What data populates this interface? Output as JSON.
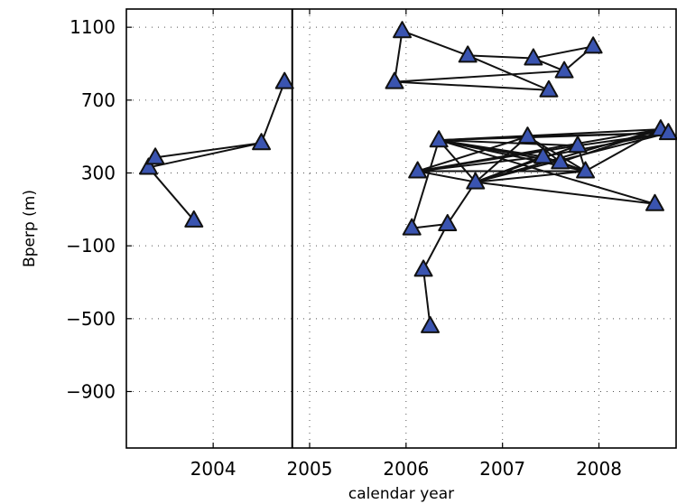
{
  "chart_data": {
    "type": "scatter",
    "title": "",
    "xlabel": "calendar year",
    "ylabel": "Bperp (m)",
    "xlim": [
      2003.1,
      2008.8
    ],
    "ylim": [
      -1210,
      1200
    ],
    "x_ticks": [
      2004,
      2005,
      2006,
      2007,
      2008
    ],
    "y_ticks": [
      1100,
      700,
      300,
      -100,
      -500,
      -900
    ],
    "grid": true,
    "reference_line_x": 2004.82,
    "points": [
      {
        "x": 2003.33,
        "y": 330
      },
      {
        "x": 2003.4,
        "y": 385
      },
      {
        "x": 2003.8,
        "y": 40
      },
      {
        "x": 2004.5,
        "y": 465
      },
      {
        "x": 2004.74,
        "y": 800
      },
      {
        "x": 2005.88,
        "y": 800
      },
      {
        "x": 2005.96,
        "y": 1080
      },
      {
        "x": 2006.64,
        "y": 945
      },
      {
        "x": 2007.32,
        "y": 930
      },
      {
        "x": 2007.48,
        "y": 755
      },
      {
        "x": 2007.64,
        "y": 860
      },
      {
        "x": 2007.94,
        "y": 995
      },
      {
        "x": 2006.06,
        "y": -3
      },
      {
        "x": 2006.12,
        "y": 310
      },
      {
        "x": 2006.18,
        "y": -230
      },
      {
        "x": 2006.25,
        "y": -540
      },
      {
        "x": 2006.34,
        "y": 480
      },
      {
        "x": 2006.43,
        "y": 20
      },
      {
        "x": 2006.72,
        "y": 250
      },
      {
        "x": 2007.26,
        "y": 500
      },
      {
        "x": 2007.42,
        "y": 390
      },
      {
        "x": 2007.6,
        "y": 360
      },
      {
        "x": 2007.78,
        "y": 450
      },
      {
        "x": 2007.86,
        "y": 310
      },
      {
        "x": 2008.58,
        "y": 130
      },
      {
        "x": 2008.64,
        "y": 540
      },
      {
        "x": 2008.72,
        "y": 520
      }
    ],
    "edges": [
      [
        0,
        1
      ],
      [
        0,
        2
      ],
      [
        0,
        3
      ],
      [
        1,
        3
      ],
      [
        3,
        4
      ],
      [
        5,
        6
      ],
      [
        6,
        7
      ],
      [
        7,
        8
      ],
      [
        7,
        9
      ],
      [
        8,
        11
      ],
      [
        8,
        10
      ],
      [
        10,
        11
      ],
      [
        5,
        10
      ],
      [
        5,
        9
      ],
      [
        12,
        16
      ],
      [
        12,
        17
      ],
      [
        14,
        15
      ],
      [
        14,
        17
      ],
      [
        17,
        18
      ],
      [
        16,
        19
      ],
      [
        16,
        20
      ],
      [
        16,
        21
      ],
      [
        16,
        22
      ],
      [
        16,
        23
      ],
      [
        16,
        25
      ],
      [
        16,
        26
      ],
      [
        16,
        24
      ],
      [
        13,
        19
      ],
      [
        13,
        20
      ],
      [
        13,
        22
      ],
      [
        13,
        23
      ],
      [
        13,
        25
      ],
      [
        18,
        19
      ],
      [
        18,
        20
      ],
      [
        18,
        22
      ],
      [
        18,
        23
      ],
      [
        18,
        24
      ],
      [
        18,
        25
      ],
      [
        18,
        26
      ],
      [
        18,
        13
      ],
      [
        18,
        16
      ],
      [
        19,
        21
      ],
      [
        19,
        23
      ],
      [
        19,
        26
      ],
      [
        20,
        23
      ],
      [
        20,
        26
      ],
      [
        21,
        25
      ],
      [
        21,
        23
      ],
      [
        22,
        23
      ],
      [
        22,
        26
      ],
      [
        23,
        25
      ]
    ]
  }
}
